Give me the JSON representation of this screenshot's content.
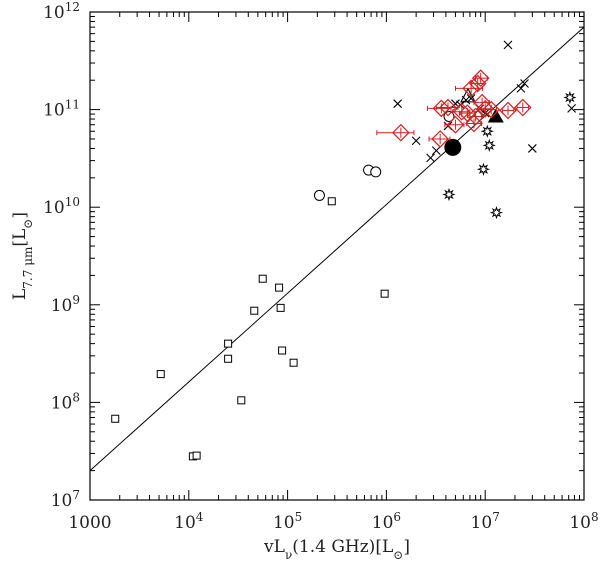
{
  "chart_data": {
    "type": "scatter",
    "title": "",
    "xlabel": "νL_ν(1.4 GHz)[L_⊙]",
    "ylabel": "L_7.7 μm[L_⊙]",
    "xscale": "log",
    "yscale": "log",
    "xlim": [
      1000,
      100000000
    ],
    "ylim": [
      10000000,
      1000000000000
    ],
    "x_ticks": [
      {
        "value": 1000,
        "base": "1000",
        "exp": ""
      },
      {
        "value": 10000,
        "base": "10",
        "exp": "4"
      },
      {
        "value": 100000,
        "base": "10",
        "exp": "5"
      },
      {
        "value": 1000000,
        "base": "10",
        "exp": "6"
      },
      {
        "value": 10000000,
        "base": "10",
        "exp": "7"
      },
      {
        "value": 100000000,
        "base": "10",
        "exp": "8"
      }
    ],
    "y_ticks": [
      {
        "value": 10000000,
        "base": "10",
        "exp": "7"
      },
      {
        "value": 100000000,
        "base": "10",
        "exp": "8"
      },
      {
        "value": 1000000000,
        "base": "10",
        "exp": "9"
      },
      {
        "value": 10000000000,
        "base": "10",
        "exp": "10"
      },
      {
        "value": 100000000000,
        "base": "10",
        "exp": "11"
      },
      {
        "value": 1000000000000,
        "base": "10",
        "exp": "12"
      }
    ],
    "fit_line": {
      "x": [
        1000,
        100000000
      ],
      "y": [
        20000000,
        700000000000
      ]
    },
    "series": [
      {
        "marker": "square",
        "color": "#000000",
        "points": [
          {
            "x": 1800,
            "y": 68000000
          },
          {
            "x": 5200,
            "y": 195000000
          },
          {
            "x": 11000,
            "y": 28000000
          },
          {
            "x": 12000,
            "y": 28500000
          },
          {
            "x": 25000,
            "y": 400000000
          },
          {
            "x": 25000,
            "y": 280000000
          },
          {
            "x": 34000,
            "y": 105000000
          },
          {
            "x": 46000,
            "y": 870000000
          },
          {
            "x": 56000,
            "y": 1850000000
          },
          {
            "x": 82000,
            "y": 1500000000
          },
          {
            "x": 85000,
            "y": 930000000
          },
          {
            "x": 88000,
            "y": 340000000
          },
          {
            "x": 115000,
            "y": 255000000
          },
          {
            "x": 280000,
            "y": 11500000000
          },
          {
            "x": 960000,
            "y": 1300000000
          }
        ]
      },
      {
        "marker": "circle",
        "color": "#000000",
        "points": [
          {
            "x": 210000,
            "y": 13200000000
          },
          {
            "x": 660000,
            "y": 24000000000
          },
          {
            "x": 780000,
            "y": 23000000000
          },
          {
            "x": 4300000,
            "y": 85000000000
          }
        ]
      },
      {
        "marker": "cross",
        "color": "#000000",
        "points": [
          {
            "x": 1300000,
            "y": 115000000000
          },
          {
            "x": 2000000,
            "y": 48000000000
          },
          {
            "x": 2800000,
            "y": 32000000000
          },
          {
            "x": 3200000,
            "y": 38000000000
          },
          {
            "x": 4200000,
            "y": 68000000000
          },
          {
            "x": 5000000,
            "y": 115000000000
          },
          {
            "x": 5600000,
            "y": 112000000000
          },
          {
            "x": 6400000,
            "y": 125000000000
          },
          {
            "x": 7200000,
            "y": 130000000000
          },
          {
            "x": 8800000,
            "y": 102000000000
          },
          {
            "x": 10000000,
            "y": 92000000000
          },
          {
            "x": 17000000,
            "y": 460000000000
          },
          {
            "x": 23000000,
            "y": 165000000000
          },
          {
            "x": 25000000,
            "y": 185000000000
          },
          {
            "x": 30000000,
            "y": 40000000000
          },
          {
            "x": 75000000,
            "y": 103000000000
          }
        ]
      },
      {
        "marker": "star",
        "color": "#000000",
        "points": [
          {
            "x": 4300000,
            "y": 13500000000
          },
          {
            "x": 9600000,
            "y": 24500000000
          },
          {
            "x": 10500000,
            "y": 60000000000
          },
          {
            "x": 11000000,
            "y": 43000000000
          },
          {
            "x": 13000000,
            "y": 8800000000
          },
          {
            "x": 72000000,
            "y": 133000000000
          }
        ]
      },
      {
        "marker": "open-triangle",
        "color": "#000000",
        "points": [
          {
            "x": 6700000,
            "y": 135000000000
          }
        ]
      },
      {
        "marker": "filled-circle",
        "color": "#000000",
        "points": [
          {
            "x": 4700000,
            "y": 41000000000
          }
        ]
      },
      {
        "marker": "filled-triangle",
        "color": "#000000",
        "points": [
          {
            "x": 12800000,
            "y": 85000000000
          }
        ]
      },
      {
        "marker": "diamond-errorbars",
        "color": "#d42020",
        "points": [
          {
            "x": 1400000,
            "y": 58000000000,
            "xlo": 800000,
            "xhi": 1900000
          },
          {
            "x": 3500000,
            "y": 50000000000,
            "xlo": 2700000,
            "xhi": 4400000
          },
          {
            "x": 3600000,
            "y": 103000000000,
            "xlo": 2600000,
            "xhi": 4500000
          },
          {
            "x": 4200000,
            "y": 105000000000,
            "xlo": 3200000,
            "xhi": 5300000
          },
          {
            "x": 5000000,
            "y": 70000000000,
            "xlo": 3900000,
            "xhi": 6100000
          },
          {
            "x": 5800000,
            "y": 95000000000,
            "xlo": 4700000,
            "xhi": 7000000
          },
          {
            "x": 6600000,
            "y": 92000000000,
            "xlo": 5500000,
            "xhi": 7900000
          },
          {
            "x": 7200000,
            "y": 165000000000,
            "xlo": 5000000,
            "xhi": 9400000
          },
          {
            "x": 7700000,
            "y": 72000000000,
            "xlo": 6500000,
            "xhi": 9200000
          },
          {
            "x": 8000000,
            "y": 85000000000,
            "xlo": 7000000,
            "xhi": 9200000
          },
          {
            "x": 8400000,
            "y": 185000000000,
            "xlo": 7300000,
            "xhi": 9700000
          },
          {
            "x": 9000000,
            "y": 210000000000,
            "xlo": 8000000,
            "xhi": 10500000
          },
          {
            "x": 9300000,
            "y": 118000000000,
            "xlo": 7700000,
            "xhi": 11000000
          },
          {
            "x": 10000000,
            "y": 102000000000,
            "xlo": 8600000,
            "xhi": 11400000
          },
          {
            "x": 11500000,
            "y": 100000000000,
            "xlo": 10000000,
            "xhi": 13000000
          },
          {
            "x": 17000000,
            "y": 98000000000,
            "xlo": 15000000,
            "xhi": 19500000
          },
          {
            "x": 24000000,
            "y": 105000000000,
            "xlo": 21000000,
            "xhi": 27500000
          }
        ]
      }
    ]
  }
}
